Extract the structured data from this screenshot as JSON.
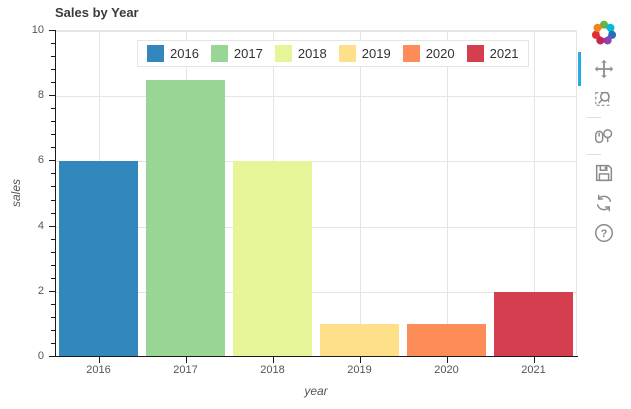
{
  "chart_data": {
    "type": "bar",
    "title": "Sales by Year",
    "categories": [
      "2016",
      "2017",
      "2018",
      "2019",
      "2020",
      "2021"
    ],
    "values": [
      6,
      8.5,
      6,
      1,
      1,
      2
    ],
    "bar_colors": [
      "#3288bd",
      "#99d594",
      "#e6f598",
      "#fee08b",
      "#fc8d59",
      "#d53e4f"
    ],
    "xlabel": "year",
    "ylabel": "sales",
    "ylim": [
      0,
      10
    ],
    "yticks": [
      0,
      2,
      4,
      6,
      8,
      10
    ],
    "grid": true,
    "legend": {
      "position": "top-center",
      "labels": [
        "2016",
        "2017",
        "2018",
        "2019",
        "2020",
        "2021"
      ]
    }
  },
  "toolbar": {
    "logo": "bokeh-logo",
    "tools": [
      "pan",
      "box-zoom",
      "wheel-zoom",
      "save",
      "reset",
      "help"
    ],
    "dividers_after": [
      "box-zoom",
      "wheel-zoom"
    ],
    "active_tool": "pan",
    "active_accent": "#26aae1"
  },
  "colors": {
    "grid": "#e5e5e5",
    "axis_line": "#1a1a1a",
    "tick_label": "#555555",
    "title_text": "#3b3b3b"
  }
}
